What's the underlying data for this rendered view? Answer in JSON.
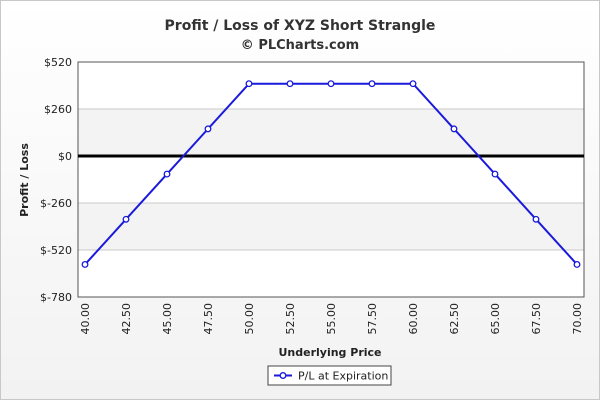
{
  "chart_data": {
    "type": "line",
    "title": "Profit / Loss of XYZ Short Strangle",
    "subtitle": "© PLCharts.com",
    "xlabel": "Underlying Price",
    "ylabel": "Profit / Loss",
    "x": [
      "40.00",
      "42.50",
      "45.00",
      "47.50",
      "50.00",
      "52.50",
      "55.00",
      "57.50",
      "60.00",
      "62.50",
      "65.00",
      "67.50",
      "70.00"
    ],
    "series": [
      {
        "name": "P/L at Expiration",
        "values": [
          -600,
          -350,
          -100,
          150,
          400,
          400,
          400,
          400,
          400,
          150,
          -100,
          -350,
          -600
        ]
      }
    ],
    "yticks": [
      "$520",
      "$260",
      "$0",
      "$-260",
      "$-520",
      "$-780"
    ],
    "ytick_values": [
      520,
      260,
      0,
      -260,
      -520,
      -780
    ],
    "ylim": [
      -780,
      520
    ],
    "grid": true,
    "legend_position": "bottom-center",
    "colors": {
      "series": "#1a1adc",
      "zero_line": "#000000",
      "band_a": "#ffffff",
      "band_b": "#f3f3f3",
      "grid": "#c8c8c8"
    }
  }
}
